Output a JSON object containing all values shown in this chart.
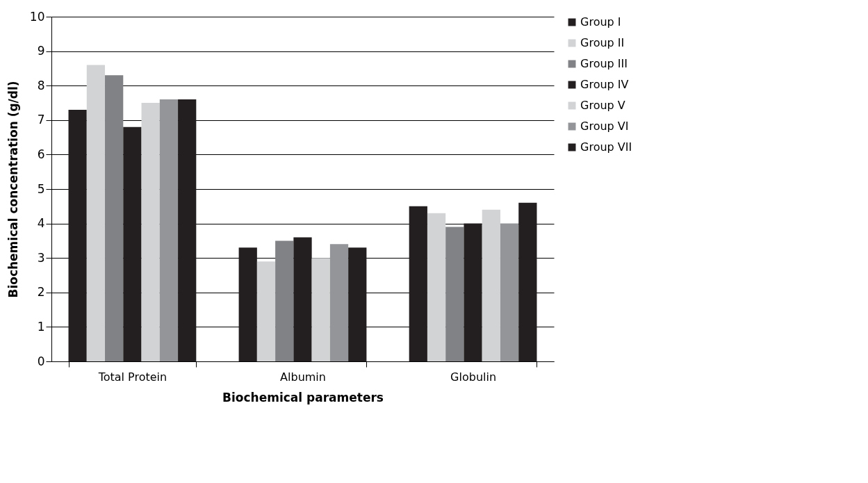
{
  "chart_data": {
    "type": "bar",
    "xlabel": "Biochemical parameters",
    "ylabel": "Biochemical concentration (g/dl)",
    "categories": [
      "Total Protein",
      "Albumin",
      "Globulin"
    ],
    "series": [
      {
        "name": "Group I",
        "color": "#231f20",
        "values": [
          7.3,
          3.3,
          4.5
        ]
      },
      {
        "name": "Group II",
        "color": "#d1d3d4",
        "values": [
          8.6,
          2.9,
          4.3
        ]
      },
      {
        "name": "Group III",
        "color": "#808285",
        "values": [
          8.3,
          3.5,
          3.9
        ]
      },
      {
        "name": "Group IV",
        "color": "#231f20",
        "values": [
          6.8,
          3.6,
          4.0
        ]
      },
      {
        "name": "Group V",
        "color": "#d1d3d4",
        "values": [
          7.5,
          3.0,
          4.4
        ]
      },
      {
        "name": "Group VI",
        "color": "#939598",
        "values": [
          7.6,
          3.4,
          4.0
        ]
      },
      {
        "name": "Group VII",
        "color": "#231f20",
        "values": [
          7.6,
          3.3,
          4.6
        ]
      }
    ],
    "ylim": [
      0,
      10
    ],
    "yticks": [
      0,
      1,
      2,
      3,
      4,
      5,
      6,
      7,
      8,
      9,
      10
    ],
    "grid": "y",
    "legend": "right"
  }
}
